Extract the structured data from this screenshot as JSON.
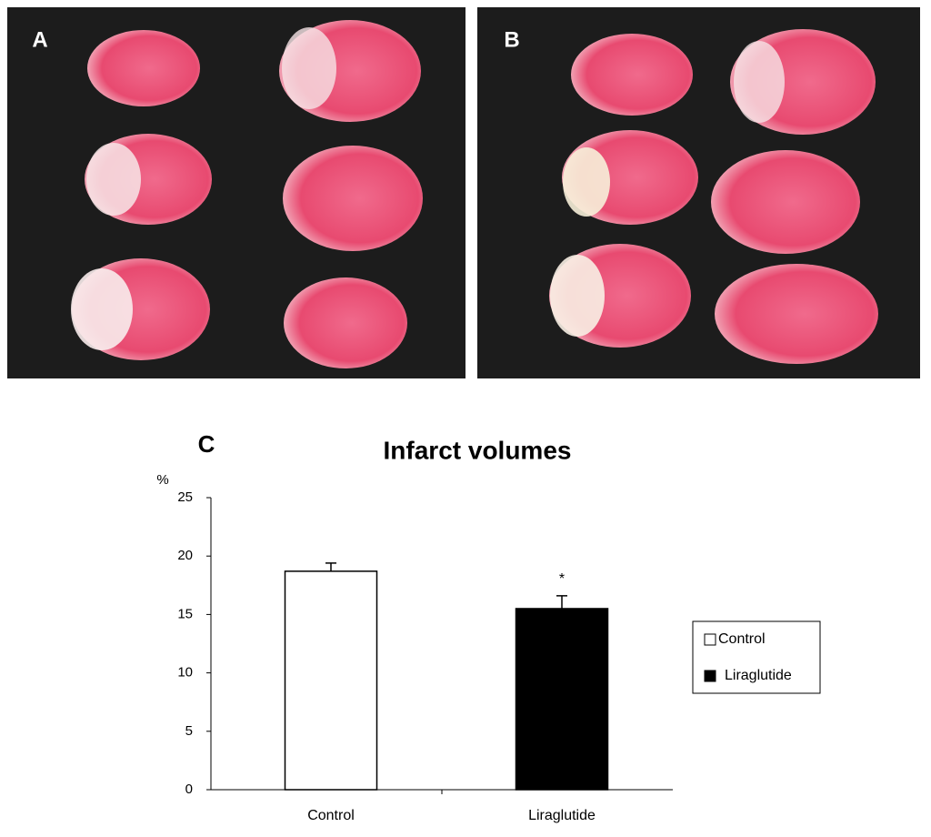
{
  "panel_labels": [
    "A",
    "B"
  ],
  "chart_data": {
    "type": "bar",
    "panel_label": "C",
    "title": "Infarct volumes",
    "y_label": "%",
    "categories": [
      "Control",
      "Liraglutide"
    ],
    "values": [
      18.7,
      15.5
    ],
    "errors": [
      0.7,
      1.1
    ],
    "colors": [
      "#ffffff",
      "#000000"
    ],
    "annotations": [
      null,
      "*"
    ],
    "ylim": [
      0,
      25
    ],
    "yticks": [
      0,
      5,
      10,
      15,
      20,
      25
    ],
    "legend": "right"
  }
}
